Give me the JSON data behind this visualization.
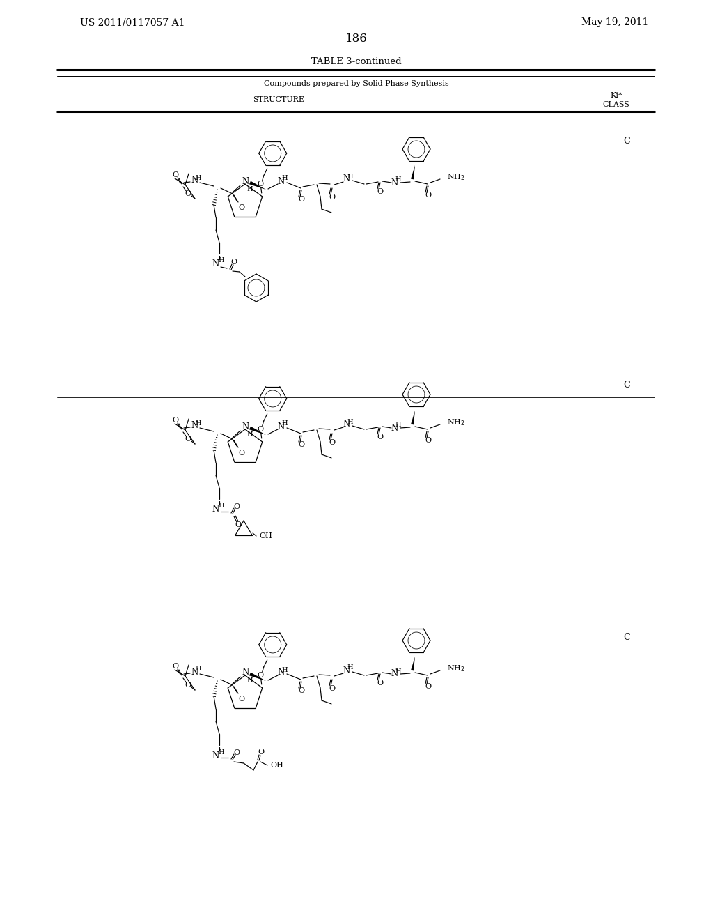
{
  "page_number": "186",
  "patent_number": "US 2011/0117057 A1",
  "patent_date": "May 19, 2011",
  "table_title": "TABLE 3-continued",
  "subtitle": "Compounds prepared by Solid Phase Synthesis",
  "col1_header": "STRUCTURE",
  "col2_header1": "Ki*",
  "col2_header2": "CLASS",
  "class_label": "C",
  "background": "#ffffff"
}
